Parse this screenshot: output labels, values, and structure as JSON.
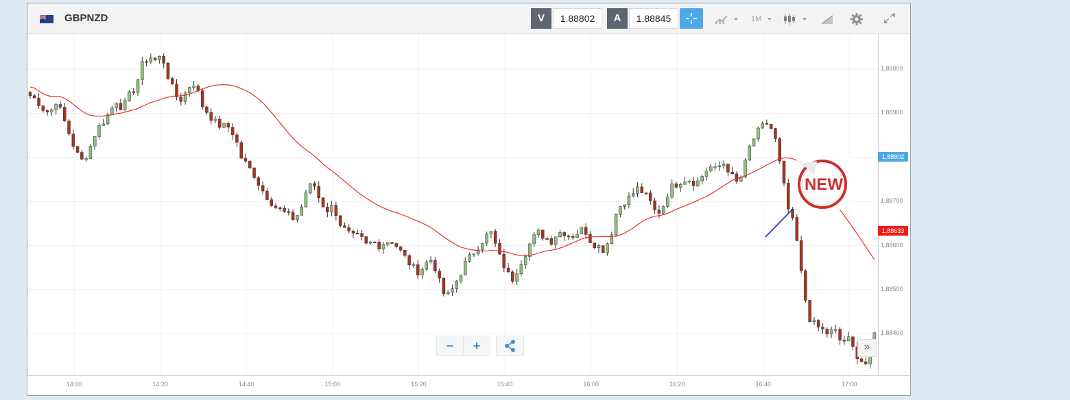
{
  "instrument": {
    "symbol": "GBPNZD",
    "flag_icon": "uk-nz-flag-icon"
  },
  "quotes": {
    "bid_label": "V",
    "bid_value": "1.88802",
    "ask_label": "A",
    "ask_value": "1.88845"
  },
  "toolbar": {
    "timeframe": "1M",
    "tools": [
      "chart-type-icon",
      "timeframe-dropdown",
      "candles-icon",
      "draw-icon",
      "gear-icon",
      "fullscreen-icon"
    ]
  },
  "price_tags": {
    "current": "1,88802",
    "ma": "1,88633"
  },
  "zoom": {
    "minus": "−",
    "plus": "+",
    "share": "share-icon"
  },
  "badge": {
    "text": "NEW"
  },
  "colors": {
    "up": "#8fbf7f",
    "down": "#a8331e",
    "ma_line": "#e8312b",
    "accent": "#4da8e8"
  },
  "chart_data": {
    "type": "candlestick",
    "title": "GBPNZD",
    "xlabel": "",
    "ylabel": "",
    "x_ticks": [
      "14:00",
      "14:20",
      "14:40",
      "15:00",
      "15:20",
      "15:40",
      "16:00",
      "16:20",
      "16:40",
      "17:00"
    ],
    "y_ticks": [
      "1,89000",
      "1,88900",
      "1,88800",
      "1,88700",
      "1,88600",
      "1,88500",
      "1,88400"
    ],
    "ylim": [
      1.8831,
      1.8907
    ],
    "current_price": 1.88802,
    "ma_price": 1.88633,
    "close_path": [
      1.8894,
      1.8893,
      1.8891,
      1.889,
      1.8893,
      1.8889,
      1.8885,
      1.8881,
      1.8879,
      1.8882,
      1.8886,
      1.8888,
      1.889,
      1.8893,
      1.8891,
      1.8894,
      1.8896,
      1.8901,
      1.8903,
      1.8902,
      1.8903,
      1.8898,
      1.8894,
      1.8893,
      1.8896,
      1.8897,
      1.8892,
      1.889,
      1.8888,
      1.8887,
      1.8887,
      1.8885,
      1.888,
      1.8878,
      1.8876,
      1.8873,
      1.8871,
      1.8869,
      1.8868,
      1.8867,
      1.8866,
      1.8868,
      1.8873,
      1.8874,
      1.887,
      1.8868,
      1.8869,
      1.8865,
      1.8863,
      1.8862,
      1.8862,
      1.886,
      1.8861,
      1.886,
      1.8861,
      1.8861,
      1.8859,
      1.8857,
      1.8855,
      1.8854,
      1.8856,
      1.8857,
      1.8852,
      1.8848,
      1.885,
      1.8853,
      1.8856,
      1.8858,
      1.886,
      1.8862,
      1.8863,
      1.8858,
      1.8855,
      1.8852,
      1.8855,
      1.8858,
      1.8861,
      1.8863,
      1.8862,
      1.8861,
      1.8863,
      1.8863,
      1.8862,
      1.8863,
      1.8864,
      1.8861,
      1.886,
      1.8859,
      1.8862,
      1.8868,
      1.887,
      1.8871,
      1.8873,
      1.8872,
      1.887,
      1.8867,
      1.8869,
      1.8873,
      1.8874,
      1.8875,
      1.8875,
      1.8874,
      1.8876,
      1.8878,
      1.8877,
      1.8879,
      1.8877,
      1.8874,
      1.8876,
      1.8882,
      1.8885,
      1.8887,
      1.8888,
      1.8884,
      1.8876,
      1.8868,
      1.8864,
      1.8853,
      1.8844,
      1.8842,
      1.8841,
      1.884,
      1.8841,
      1.8838,
      1.8839,
      1.8836,
      1.8834,
      1.8833,
      1.884,
      1.8839,
      1.8841
    ]
  }
}
